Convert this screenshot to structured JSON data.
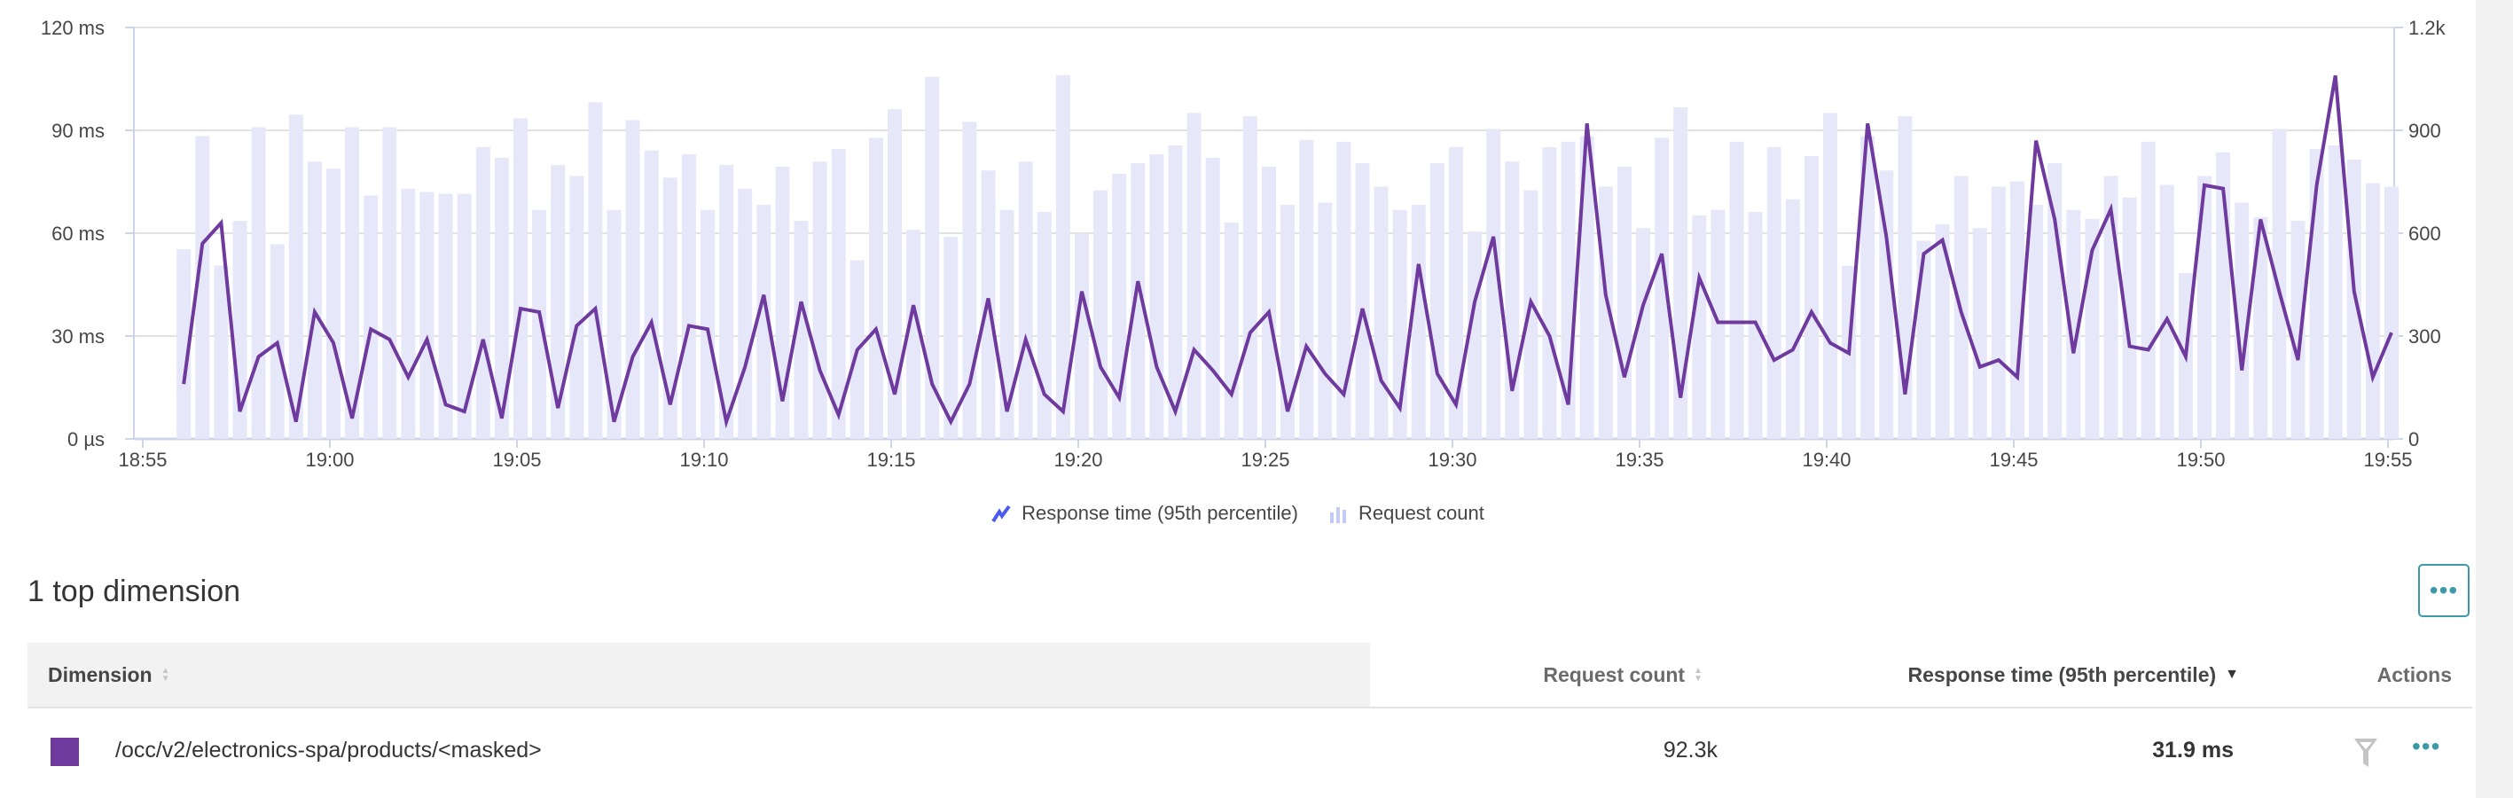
{
  "chart_data": {
    "type": "bar+line",
    "title": "",
    "xlabel": "",
    "grid": true,
    "legend_position": "bottom-center",
    "x_ticks": [
      "18:55",
      "19:00",
      "19:05",
      "19:10",
      "19:15",
      "19:20",
      "19:25",
      "19:30",
      "19:35",
      "19:40",
      "19:45",
      "19:50",
      "19:55"
    ],
    "y_left": {
      "ticks": [
        "0 µs",
        "30 ms",
        "60 ms",
        "90 ms",
        "120 ms"
      ],
      "range_ms": [
        0,
        120
      ]
    },
    "y_right": {
      "ticks": [
        "0",
        "300",
        "600",
        "900",
        "1.2k"
      ],
      "range": [
        0,
        1200
      ]
    },
    "x": [
      "18:56:00",
      "18:56:30",
      "18:57:00",
      "18:57:30",
      "18:58:00",
      "18:58:30",
      "18:59:00",
      "18:59:30",
      "19:00:00",
      "19:00:30",
      "19:01:00",
      "19:01:30",
      "19:02:00",
      "19:02:30",
      "19:03:00",
      "19:03:30",
      "19:04:00",
      "19:04:30",
      "19:05:00",
      "19:05:30",
      "19:06:00",
      "19:06:30",
      "19:07:00",
      "19:07:30",
      "19:08:00",
      "19:08:30",
      "19:09:00",
      "19:09:30",
      "19:10:00",
      "19:10:30",
      "19:11:00",
      "19:11:30",
      "19:12:00",
      "19:12:30",
      "19:13:00",
      "19:13:30",
      "19:14:00",
      "19:14:30",
      "19:15:00",
      "19:15:30",
      "19:16:00",
      "19:16:30",
      "19:17:00",
      "19:17:30",
      "19:18:00",
      "19:18:30",
      "19:19:00",
      "19:19:30",
      "19:20:00",
      "19:20:30",
      "19:21:00",
      "19:21:30",
      "19:22:00",
      "19:22:30",
      "19:23:00",
      "19:23:30",
      "19:24:00",
      "19:24:30",
      "19:25:00",
      "19:25:30",
      "19:26:00",
      "19:26:30",
      "19:27:00",
      "19:27:30",
      "19:28:00",
      "19:28:30",
      "19:29:00",
      "19:29:30",
      "19:30:00",
      "19:30:30",
      "19:31:00",
      "19:31:30",
      "19:32:00",
      "19:32:30",
      "19:33:00",
      "19:33:30",
      "19:34:00",
      "19:34:30",
      "19:35:00",
      "19:35:30",
      "19:36:00",
      "19:36:30",
      "19:37:00",
      "19:37:30",
      "19:38:00",
      "19:38:30",
      "19:39:00",
      "19:39:30",
      "19:40:00",
      "19:40:30",
      "19:41:00",
      "19:41:30",
      "19:42:00",
      "19:42:30",
      "19:43:00",
      "19:43:30",
      "19:44:00",
      "19:44:30",
      "19:45:00",
      "19:45:30",
      "19:46:00",
      "19:46:30",
      "19:47:00",
      "19:47:30",
      "19:48:00",
      "19:48:30",
      "19:49:00",
      "19:49:30",
      "19:50:00",
      "19:50:30",
      "19:51:00",
      "19:51:30",
      "19:52:00",
      "19:52:30",
      "19:53:00",
      "19:53:30",
      "19:54:00",
      "19:54:30",
      "19:55:00"
    ],
    "series": [
      {
        "name": "Response time (95th percentile)",
        "type": "line",
        "axis": "left",
        "unit": "ms",
        "color": "#6f3a9e",
        "values": [
          16,
          57,
          63,
          8,
          24,
          28,
          5,
          37,
          28,
          6,
          32,
          29,
          18,
          29,
          10,
          8,
          29,
          6,
          38,
          37,
          9,
          33,
          38,
          5,
          24,
          34,
          10,
          33,
          32,
          5,
          21,
          42,
          11,
          40,
          20,
          7,
          26,
          32,
          13,
          39,
          16,
          5,
          16,
          41,
          8,
          29,
          13,
          8,
          43,
          21,
          12,
          46,
          21,
          8,
          26,
          20,
          13,
          31,
          37,
          8,
          27,
          19,
          13,
          38,
          17,
          9,
          51,
          19,
          10,
          40,
          59,
          14,
          40,
          30,
          10,
          92,
          42,
          18,
          39,
          54,
          12,
          47,
          34,
          34,
          34,
          23,
          26,
          37,
          28,
          25,
          92,
          59,
          13,
          54,
          58,
          37,
          21,
          23,
          18,
          87,
          64,
          25,
          55,
          67,
          27,
          26,
          35,
          24,
          74,
          73,
          20,
          64,
          43,
          23,
          74,
          106,
          43,
          18,
          31
        ]
      },
      {
        "name": "Request count",
        "type": "bar",
        "axis": "right",
        "color": "#e6e8fa",
        "values": [
          553,
          883,
          506,
          636,
          909,
          568,
          946,
          809,
          788,
          909,
          710,
          909,
          730,
          720,
          715,
          715,
          851,
          820,
          935,
          668,
          799,
          767,
          982,
          668,
          930,
          841,
          762,
          830,
          668,
          799,
          730,
          683,
          794,
          636,
          809,
          846,
          521,
          878,
          962,
          610,
          1056,
          589,
          925,
          783,
          668,
          809,
          662,
          1061,
          599,
          725,
          773,
          804,
          830,
          856,
          951,
          820,
          631,
          941,
          794,
          683,
          872,
          689,
          867,
          804,
          736,
          668,
          683,
          804,
          851,
          605,
          904,
          809,
          725,
          851,
          867,
          883,
          736,
          794,
          615,
          878,
          967,
          652,
          668,
          867,
          662,
          851,
          699,
          825,
          951,
          505,
          883,
          783,
          941,
          578,
          626,
          767,
          615,
          736,
          751,
          683,
          804,
          668,
          642,
          767,
          704,
          867,
          741,
          484,
          767,
          836,
          689,
          647,
          904,
          636,
          846,
          856,
          815,
          746,
          736
        ]
      }
    ]
  },
  "legend": {
    "items": [
      {
        "label": "Response time (95th percentile)",
        "icon": "line-chart-icon",
        "color": "#4a5cf0"
      },
      {
        "label": "Request count",
        "icon": "bar-chart-icon",
        "color": "#c5cbf7"
      }
    ]
  },
  "section": {
    "title": "1 top dimension",
    "more_label": "•••"
  },
  "table": {
    "columns": [
      {
        "label": "Dimension",
        "sort": "none"
      },
      {
        "label": "Request count",
        "sort": "none"
      },
      {
        "label": "Response time (95th percentile)",
        "sort": "descending",
        "sort_glyph": "▼"
      },
      {
        "label": "Actions"
      }
    ],
    "rows": [
      {
        "color": "#6f3a9e",
        "dimension": "/occ/v2/electronics-spa/products/<masked>",
        "request_count": "92.3k",
        "response_time": "31.9 ms",
        "filter_icon": "funnel-icon",
        "more_label": "•••"
      }
    ]
  }
}
